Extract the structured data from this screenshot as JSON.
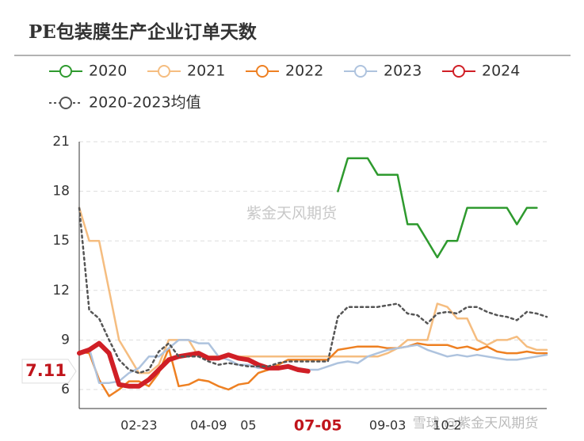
{
  "chart_data": {
    "type": "line",
    "title": "PE包装膜生产企业订单天数",
    "categories": [
      null,
      null,
      null,
      null,
      null,
      null,
      "02-23",
      null,
      null,
      null,
      null,
      null,
      null,
      "04-09",
      null,
      null,
      null,
      "05",
      null,
      null,
      null,
      null,
      null,
      null,
      "07-05",
      null,
      null,
      null,
      null,
      null,
      null,
      "09-03",
      null,
      null,
      null,
      null,
      null,
      "10-2",
      null,
      null,
      null,
      null,
      null,
      null,
      null,
      null,
      null,
      null
    ],
    "highlighted_category": "07-05",
    "series": [
      {
        "name": "2020",
        "color": "#2e9a2e",
        "width": 2.5,
        "values": [
          null,
          null,
          null,
          null,
          null,
          null,
          null,
          null,
          null,
          null,
          null,
          null,
          null,
          null,
          null,
          null,
          null,
          null,
          null,
          null,
          null,
          null,
          null,
          null,
          null,
          null,
          18,
          20,
          20,
          20,
          19,
          19,
          19,
          16,
          16,
          15,
          14,
          15,
          15,
          17,
          17,
          17,
          17,
          17,
          16,
          17,
          17,
          null
        ]
      },
      {
        "name": "2021",
        "color": "#f5bd80",
        "width": 2.5,
        "values": [
          17,
          15,
          15,
          12,
          9,
          8,
          7,
          7,
          7.5,
          9,
          9,
          9,
          8,
          8,
          8,
          8,
          8,
          8,
          8,
          8,
          8,
          8,
          8,
          8,
          8,
          8,
          8,
          8,
          8,
          8,
          8,
          8.2,
          8.5,
          9,
          9,
          9,
          11.2,
          11,
          10.3,
          10.3,
          9,
          8.7,
          9,
          9,
          9.2,
          8.6,
          8.4,
          8.4
        ]
      },
      {
        "name": "2022",
        "color": "#ee8022",
        "width": 2.5,
        "values": [
          8.3,
          8.2,
          6.6,
          5.6,
          6,
          6.5,
          6.5,
          6.2,
          7,
          8.5,
          6.2,
          6.3,
          6.6,
          6.5,
          6.2,
          6,
          6.3,
          6.4,
          7,
          7.2,
          7.5,
          7.8,
          7.8,
          7.8,
          7.8,
          7.8,
          8.4,
          8.5,
          8.6,
          8.6,
          8.6,
          8.5,
          8.5,
          8.6,
          8.8,
          8.7,
          8.7,
          8.7,
          8.5,
          8.6,
          8.4,
          8.6,
          8.3,
          8.2,
          8.2,
          8.3,
          8.2,
          8.2
        ]
      },
      {
        "name": "2023",
        "color": "#aec3de",
        "width": 2.5,
        "values": [
          8.2,
          8.5,
          6.4,
          6.4,
          6.5,
          7,
          7.3,
          8,
          8,
          8.5,
          9,
          9,
          8.8,
          8.8,
          8,
          7.8,
          7.5,
          7.5,
          7.3,
          7.3,
          7.3,
          7.3,
          7.3,
          7.2,
          7.2,
          7.4,
          7.6,
          7.7,
          7.6,
          8,
          8.2,
          8.4,
          8.5,
          8.6,
          8.7,
          8.4,
          8.2,
          8,
          8.1,
          8,
          8.1,
          8,
          7.9,
          7.8,
          7.8,
          7.9,
          8,
          8.1
        ]
      },
      {
        "name": "2024",
        "color": "#d01f26",
        "width": 6,
        "values": [
          8.2,
          8.4,
          8.8,
          8.2,
          6.3,
          6.2,
          6.2,
          6.6,
          7.2,
          7.8,
          8,
          8.1,
          8.2,
          7.9,
          7.9,
          8.1,
          7.9,
          7.8,
          7.5,
          7.3,
          7.3,
          7.4,
          7.2,
          7.11,
          null,
          null,
          null,
          null,
          null,
          null,
          null,
          null,
          null,
          null,
          null,
          null,
          null,
          null,
          null,
          null,
          null,
          null,
          null,
          null,
          null,
          null,
          null,
          null
        ]
      },
      {
        "name": "2020-2023均值",
        "color": "#555555",
        "width": 2.5,
        "dash": true,
        "values": [
          17,
          10.8,
          10.3,
          9,
          7.8,
          7.2,
          7,
          7.2,
          8.3,
          8.8,
          8,
          8,
          8,
          7.7,
          7.5,
          7.6,
          7.5,
          7.4,
          7.4,
          7.4,
          7.6,
          7.7,
          7.7,
          7.7,
          7.7,
          7.7,
          10.4,
          11,
          11,
          11,
          11,
          11.1,
          11.2,
          10.6,
          10.5,
          10,
          10.6,
          10.7,
          10.6,
          11,
          11,
          10.7,
          10.5,
          10.4,
          10.2,
          10.7,
          10.6,
          10.4
        ]
      }
    ],
    "ylim": [
      4.85,
      21
    ],
    "yticks": [
      6,
      9,
      12,
      15,
      18,
      21
    ],
    "grid": true,
    "marker": {
      "value": 7.11,
      "label": "7.11",
      "color": "#c0141b"
    },
    "watermarks": [
      "紫金天风期货",
      "雪球 @紫金天风期货"
    ]
  }
}
